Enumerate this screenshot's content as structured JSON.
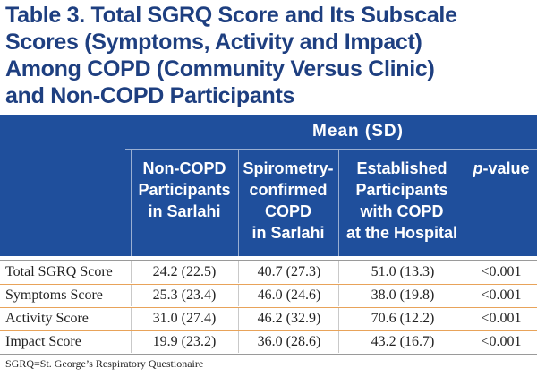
{
  "title_lines": [
    "Table 3. Total SGRQ Score and Its Subscale",
    "Scores (Symptoms, Activity and Impact)",
    "Among COPD (Community Versus Clinic)",
    "and Non-COPD Participants"
  ],
  "header": {
    "group_label": "Mean (SD)",
    "columns": [
      {
        "lines": [
          "Non-COPD",
          "Participants",
          "in Sarlahi"
        ]
      },
      {
        "lines": [
          "Spirometry-",
          "confirmed",
          "COPD",
          "in Sarlahi"
        ]
      },
      {
        "lines": [
          "Established",
          "Participants",
          "with COPD",
          "at the Hospital"
        ]
      }
    ],
    "pvalue_italic": "p",
    "pvalue_rest": "-value"
  },
  "rows": [
    {
      "label": "Total SGRQ Score",
      "non_copd": "24.2 (22.5)",
      "sarlahi_copd": "40.7 (27.3)",
      "hospital_copd": "51.0 (13.3)",
      "p_value": "<0.001"
    },
    {
      "label": "Symptoms Score",
      "non_copd": "25.3 (23.4)",
      "sarlahi_copd": "46.0 (24.6)",
      "hospital_copd": "38.0 (19.8)",
      "p_value": "<0.001"
    },
    {
      "label": "Activity Score",
      "non_copd": "31.0 (27.4)",
      "sarlahi_copd": "46.2 (32.9)",
      "hospital_copd": "70.6 (12.2)",
      "p_value": "<0.001"
    },
    {
      "label": "Impact Score",
      "non_copd": "19.9 (23.2)",
      "sarlahi_copd": "36.0 (28.6)",
      "hospital_copd": "43.2 (16.7)",
      "p_value": "<0.001"
    }
  ],
  "footnote": "SGRQ=St. George’s Respiratory Questionaire",
  "colors": {
    "title": "#1e3f80",
    "header_bg": "#1f4f9c",
    "row_separator": "#e8a35a"
  }
}
